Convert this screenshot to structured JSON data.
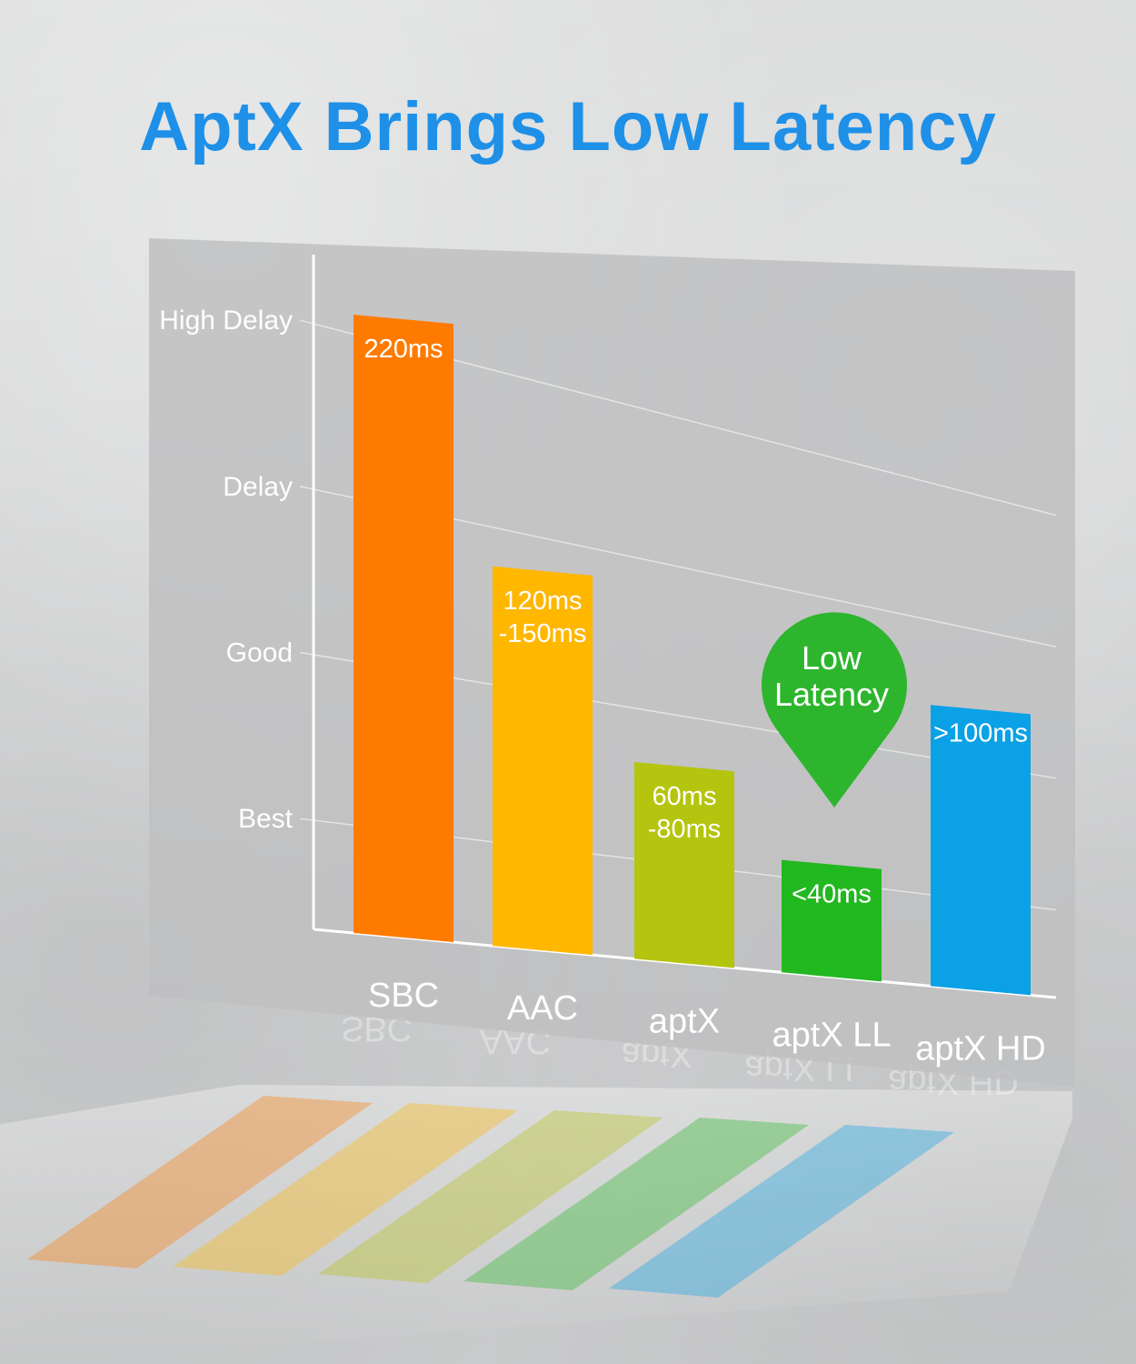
{
  "page": {
    "title": "AptX Brings Low Latency",
    "title_color": "#1e90e8"
  },
  "badge": {
    "line1": "Low",
    "line2": "Latency",
    "color": "#2eb52e"
  },
  "chart_data": {
    "type": "bar",
    "title": "",
    "xlabel": "",
    "ylabel": "",
    "grid": true,
    "categories": [
      "SBC",
      "AAC",
      "aptX",
      "aptX LL",
      "aptX HD"
    ],
    "y_levels": [
      "High Delay",
      "Delay",
      "Good",
      "Best"
    ],
    "y_level_values": [
      220,
      160,
      100,
      40
    ],
    "values": [
      220,
      135,
      70,
      40,
      100
    ],
    "value_labels": [
      [
        "220ms"
      ],
      [
        "120ms",
        "-150ms"
      ],
      [
        "60ms",
        "-80ms"
      ],
      [
        "<40ms"
      ],
      [
        ">100ms"
      ]
    ],
    "colors": [
      "#ff7b00",
      "#ffb700",
      "#b5c40e",
      "#22b820",
      "#0aa1e6"
    ],
    "ylim": [
      0,
      220
    ]
  }
}
